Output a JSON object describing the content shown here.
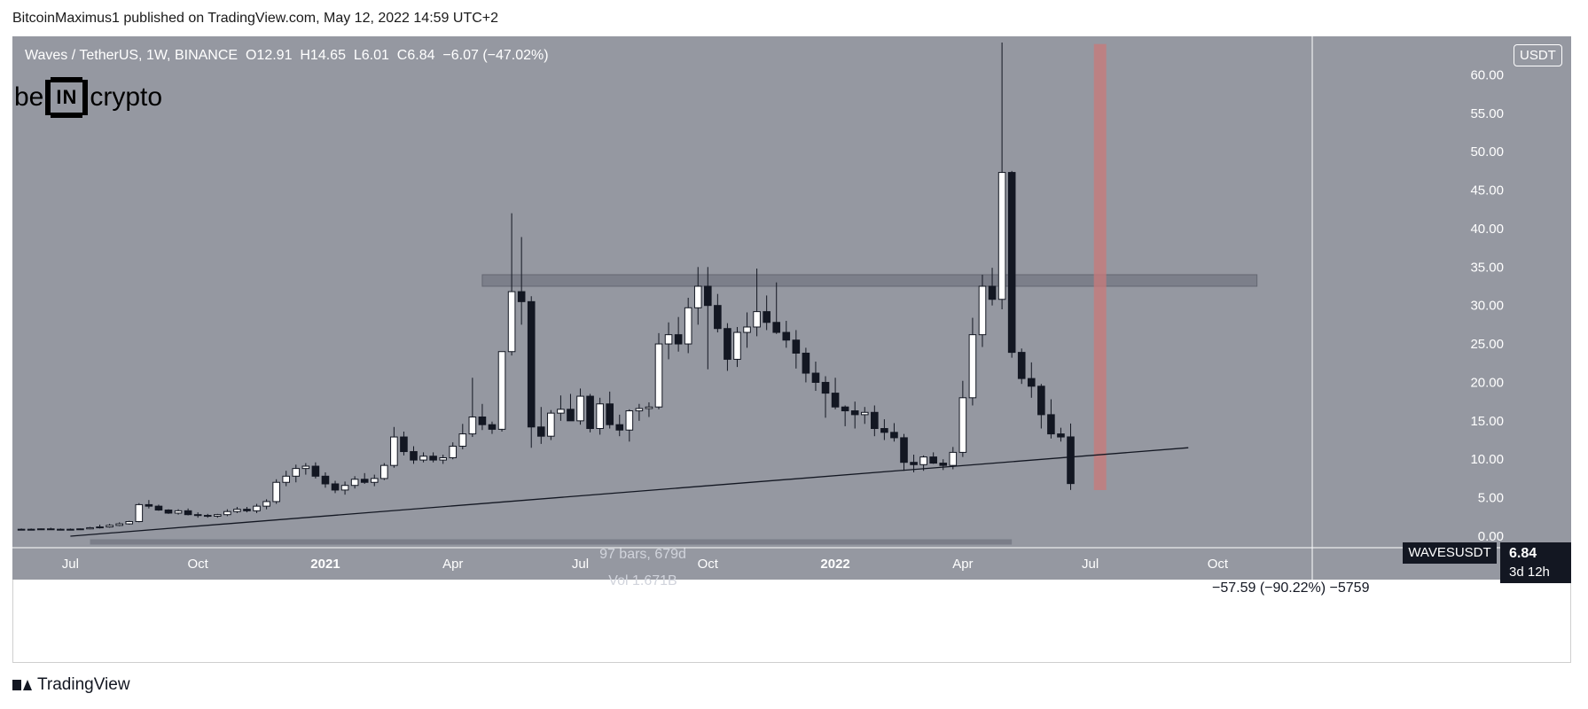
{
  "header": {
    "text": "BitcoinMaximus1 published on TradingView.com, May 12, 2022 14:59 UTC+2"
  },
  "legend": {
    "symbol": "Waves / TetherUS, 1W, BINANCE",
    "o_label": "O",
    "o": "12.91",
    "h_label": "H",
    "h": "14.65",
    "l_label": "L",
    "l": "6.01",
    "c_label": "C",
    "c": "6.84",
    "change": "−6.07 (−47.02%)"
  },
  "brand": {
    "pre": "be",
    "mid": "IN",
    "post": "crypto"
  },
  "unit": "USDT",
  "last_price": {
    "symbol": "WAVESUSDT",
    "value": "6.84",
    "countdown": "3d 12h"
  },
  "measure": {
    "bars": "97 bars, 679d",
    "vol": "Vol 1.671B",
    "delta": "−57.59 (−90.22%) −5759"
  },
  "footer": {
    "brand": "TradingView"
  },
  "colors": {
    "pane": "#9598a1",
    "bull": "#ffffff",
    "bear": "#131722",
    "zone": "#787b86",
    "vline": "#c97a7a"
  },
  "chart_data": {
    "type": "candlestick",
    "y_ticks": [
      "60.00",
      "55.00",
      "50.00",
      "45.00",
      "40.00",
      "35.00",
      "30.00",
      "25.00",
      "20.00",
      "15.00",
      "10.00",
      "5.00",
      "0.00"
    ],
    "x_ticks": [
      {
        "label": "Jul",
        "i": 5,
        "bold": false
      },
      {
        "label": "Oct",
        "i": 18,
        "bold": false
      },
      {
        "label": "2021",
        "i": 31,
        "bold": true
      },
      {
        "label": "Apr",
        "i": 44,
        "bold": false
      },
      {
        "label": "Jul",
        "i": 57,
        "bold": false
      },
      {
        "label": "Oct",
        "i": 70,
        "bold": false
      },
      {
        "label": "2022",
        "i": 83,
        "bold": true
      },
      {
        "label": "Apr",
        "i": 96,
        "bold": false
      },
      {
        "label": "Jul",
        "i": 109,
        "bold": false
      },
      {
        "label": "Oct",
        "i": 122,
        "bold": false
      }
    ],
    "ylim": [
      -1.5,
      65
    ],
    "resistance_zone": {
      "from": 32.5,
      "to": 34.0,
      "start_i": 47,
      "end_i": 126
    },
    "ascending_support": {
      "i0": 5,
      "p0": 0.0,
      "i1": 119,
      "p1": 11.5
    },
    "vertical_marker": {
      "i": 110,
      "from": 6.0,
      "to": 64.0
    },
    "measure_range_i": [
      7,
      101
    ],
    "candles": [
      [
        0.9,
        1.0,
        0.8,
        0.9
      ],
      [
        0.9,
        1.0,
        0.8,
        0.9
      ],
      [
        0.9,
        1.0,
        0.8,
        0.95
      ],
      [
        0.95,
        1.1,
        0.85,
        0.9
      ],
      [
        0.9,
        1.0,
        0.8,
        0.85
      ],
      [
        0.85,
        1.0,
        0.8,
        0.9
      ],
      [
        0.9,
        1.0,
        0.8,
        0.95
      ],
      [
        0.95,
        1.2,
        0.9,
        1.1
      ],
      [
        1.1,
        1.5,
        1.0,
        1.2
      ],
      [
        1.2,
        1.6,
        1.1,
        1.4
      ],
      [
        1.4,
        1.8,
        1.3,
        1.6
      ],
      [
        1.6,
        2.0,
        1.5,
        1.9
      ],
      [
        1.9,
        4.3,
        1.8,
        4.1
      ],
      [
        4.1,
        4.7,
        3.6,
        3.9
      ],
      [
        3.9,
        4.1,
        3.3,
        3.4
      ],
      [
        3.4,
        3.5,
        2.9,
        3.0
      ],
      [
        3.0,
        3.5,
        2.8,
        3.3
      ],
      [
        3.3,
        3.6,
        2.7,
        2.8
      ],
      [
        2.8,
        3.1,
        2.4,
        2.7
      ],
      [
        2.7,
        2.9,
        2.4,
        2.6
      ],
      [
        2.6,
        2.9,
        2.4,
        2.8
      ],
      [
        2.8,
        3.5,
        2.6,
        3.2
      ],
      [
        3.2,
        3.8,
        3.0,
        3.5
      ],
      [
        3.5,
        3.8,
        3.1,
        3.3
      ],
      [
        3.3,
        4.2,
        3.0,
        3.9
      ],
      [
        3.9,
        4.8,
        3.5,
        4.5
      ],
      [
        4.5,
        7.4,
        4.2,
        7.0
      ],
      [
        7.0,
        8.5,
        6.5,
        7.8
      ],
      [
        7.8,
        9.3,
        7.0,
        8.8
      ],
      [
        8.8,
        9.5,
        8.0,
        9.1
      ],
      [
        9.1,
        9.6,
        7.5,
        7.8
      ],
      [
        7.8,
        8.3,
        6.3,
        6.8
      ],
      [
        6.8,
        7.2,
        5.6,
        6.0
      ],
      [
        6.0,
        7.1,
        5.4,
        6.6
      ],
      [
        6.6,
        7.8,
        6.2,
        7.4
      ],
      [
        7.4,
        8.2,
        6.8,
        7.0
      ],
      [
        7.0,
        8.0,
        6.5,
        7.5
      ],
      [
        7.5,
        9.5,
        7.3,
        9.2
      ],
      [
        9.2,
        14.2,
        8.9,
        12.9
      ],
      [
        12.9,
        13.6,
        10.5,
        11.0
      ],
      [
        11.0,
        11.7,
        9.4,
        9.9
      ],
      [
        9.9,
        10.9,
        9.6,
        10.4
      ],
      [
        10.4,
        10.9,
        9.6,
        9.9
      ],
      [
        9.9,
        10.6,
        9.4,
        10.2
      ],
      [
        10.2,
        12.2,
        10.0,
        11.7
      ],
      [
        11.7,
        14.6,
        11.3,
        13.3
      ],
      [
        13.3,
        20.6,
        12.9,
        15.5
      ],
      [
        15.5,
        17.2,
        13.8,
        14.5
      ],
      [
        14.5,
        14.9,
        13.3,
        13.9
      ],
      [
        13.9,
        24.0,
        13.6,
        24.0
      ],
      [
        24.0,
        42.0,
        23.5,
        31.8
      ],
      [
        31.8,
        38.9,
        27.5,
        30.5
      ],
      [
        30.5,
        31.2,
        11.5,
        14.2
      ],
      [
        14.2,
        16.8,
        12.0,
        13.0
      ],
      [
        13.0,
        16.4,
        12.5,
        16.0
      ],
      [
        16.0,
        18.3,
        15.0,
        16.5
      ],
      [
        16.5,
        18.5,
        15.0,
        15.0
      ],
      [
        15.0,
        19.2,
        14.5,
        18.2
      ],
      [
        18.2,
        18.5,
        13.5,
        14.0
      ],
      [
        14.0,
        18.0,
        13.2,
        17.2
      ],
      [
        17.2,
        18.8,
        14.0,
        14.5
      ],
      [
        14.5,
        15.8,
        13.0,
        13.8
      ],
      [
        13.8,
        16.5,
        12.3,
        16.3
      ],
      [
        16.3,
        17.2,
        15.0,
        16.6
      ],
      [
        16.6,
        17.4,
        15.5,
        16.8
      ],
      [
        16.8,
        26.4,
        16.5,
        25.0
      ],
      [
        25.0,
        27.8,
        23.0,
        26.2
      ],
      [
        26.2,
        28.5,
        24.0,
        25.0
      ],
      [
        25.0,
        31.0,
        23.8,
        29.7
      ],
      [
        29.7,
        35.0,
        27.5,
        32.5
      ],
      [
        32.5,
        35.0,
        21.7,
        30.0
      ],
      [
        30.0,
        31.5,
        26.5,
        27.0
      ],
      [
        27.0,
        27.7,
        21.5,
        23.0
      ],
      [
        23.0,
        27.2,
        22.0,
        26.5
      ],
      [
        26.5,
        29.1,
        24.5,
        27.2
      ],
      [
        27.2,
        34.8,
        26.0,
        29.2
      ],
      [
        29.2,
        31.3,
        26.8,
        27.8
      ],
      [
        27.8,
        33.0,
        26.3,
        26.5
      ],
      [
        26.5,
        28.0,
        24.5,
        25.5
      ],
      [
        25.5,
        26.8,
        21.8,
        23.8
      ],
      [
        23.8,
        24.5,
        20.0,
        21.2
      ],
      [
        21.2,
        22.7,
        18.9,
        20.0
      ],
      [
        20.0,
        20.8,
        15.4,
        18.6
      ],
      [
        18.6,
        20.6,
        16.5,
        16.8
      ],
      [
        16.8,
        17.0,
        14.3,
        16.3
      ],
      [
        16.3,
        17.5,
        14.0,
        15.8
      ],
      [
        15.8,
        16.8,
        14.6,
        16.1
      ],
      [
        16.1,
        17.0,
        13.0,
        14.0
      ],
      [
        14.0,
        15.2,
        12.5,
        13.5
      ],
      [
        13.5,
        14.7,
        12.3,
        12.8
      ],
      [
        12.8,
        13.3,
        8.5,
        9.6
      ],
      [
        9.6,
        10.6,
        8.3,
        9.3
      ],
      [
        9.3,
        10.5,
        8.5,
        10.3
      ],
      [
        10.3,
        10.9,
        9.4,
        9.5
      ],
      [
        9.5,
        10.0,
        8.6,
        9.2
      ],
      [
        9.2,
        11.6,
        8.7,
        10.9
      ],
      [
        10.9,
        20.2,
        10.3,
        18.0
      ],
      [
        18.0,
        28.4,
        17.0,
        26.2
      ],
      [
        26.2,
        34.0,
        24.6,
        32.5
      ],
      [
        32.5,
        34.9,
        30.0,
        30.8
      ],
      [
        30.8,
        64.2,
        29.5,
        47.3
      ],
      [
        47.3,
        47.5,
        23.2,
        23.9
      ],
      [
        23.9,
        24.4,
        19.8,
        20.5
      ],
      [
        20.5,
        22.6,
        18.0,
        19.5
      ],
      [
        19.5,
        19.8,
        14.0,
        15.8
      ],
      [
        15.8,
        17.8,
        12.7,
        13.3
      ],
      [
        13.3,
        14.1,
        12.3,
        12.9
      ],
      [
        12.91,
        14.65,
        6.01,
        6.84
      ]
    ]
  }
}
